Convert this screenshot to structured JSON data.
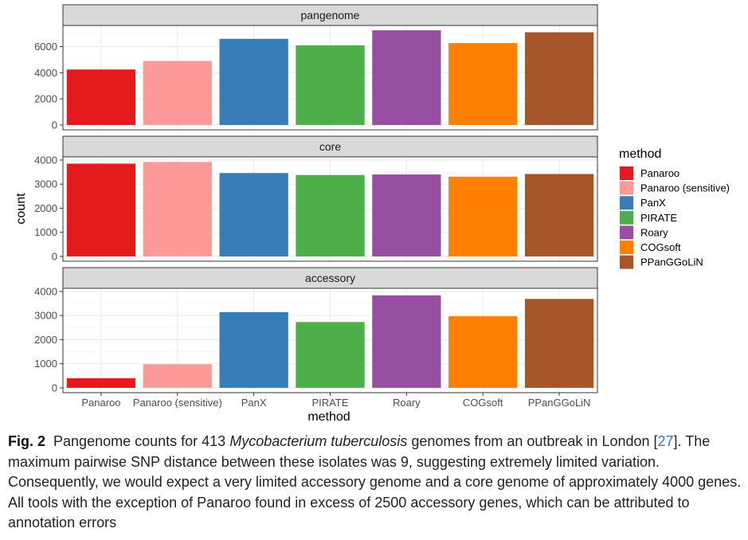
{
  "chart_data": {
    "type": "bar",
    "categories": [
      "Panaroo",
      "Panaroo (sensitive)",
      "PanX",
      "PIRATE",
      "Roary",
      "COGsoft",
      "PPanGGoLiN"
    ],
    "colors": [
      "#e41a1c",
      "#fb9a99",
      "#377eb8",
      "#4daf4a",
      "#984ea3",
      "#ff7f00",
      "#a65628"
    ],
    "xlabel": "method",
    "ylabel": "count",
    "legend": {
      "title": "method",
      "position": "right",
      "entries": [
        "Panaroo",
        "Panaroo (sensitive)",
        "PanX",
        "PIRATE",
        "Roary",
        "COGsoft",
        "PPanGGoLiN"
      ]
    },
    "grid": true,
    "facets": [
      {
        "strip": "pangenome",
        "values": [
          4250,
          4900,
          6600,
          6100,
          7250,
          6270,
          7100
        ],
        "ylim": [
          -370,
          7620
        ],
        "yticks": [
          0,
          2000,
          4000,
          6000
        ],
        "ytick_labels": [
          "0",
          "2000",
          "4000",
          "6000"
        ]
      },
      {
        "strip": "core",
        "values": [
          3850,
          3920,
          3460,
          3380,
          3400,
          3310,
          3420
        ],
        "ylim": [
          -200,
          4130
        ],
        "yticks": [
          0,
          1000,
          2000,
          3000,
          4000
        ],
        "ytick_labels": [
          "0",
          "1000",
          "2000",
          "3000",
          "4000"
        ]
      },
      {
        "strip": "accessory",
        "values": [
          400,
          980,
          3140,
          2730,
          3840,
          2970,
          3690
        ],
        "ylim": [
          -200,
          4130
        ],
        "yticks": [
          0,
          1000,
          2000,
          3000,
          4000
        ],
        "ytick_labels": [
          "0",
          "1000",
          "2000",
          "3000",
          "4000"
        ]
      }
    ]
  },
  "caption": {
    "label": "Fig. 2",
    "text_before": "Pangenome counts for 413",
    "species": "Mycobacterium tuberculosis",
    "text_mid": "genomes from an outbreak in London [",
    "ref": "27",
    "text_after": "]. The maximum pairwise SNP distance between these isolates was 9, suggesting extremely limited variation. Consequently, we would expect a very limited accessory genome and a core genome of approximately 4000 genes. All tools with the exception of Panaroo found in excess of 2500 accessory genes, which can be attributed to annotation errors"
  }
}
